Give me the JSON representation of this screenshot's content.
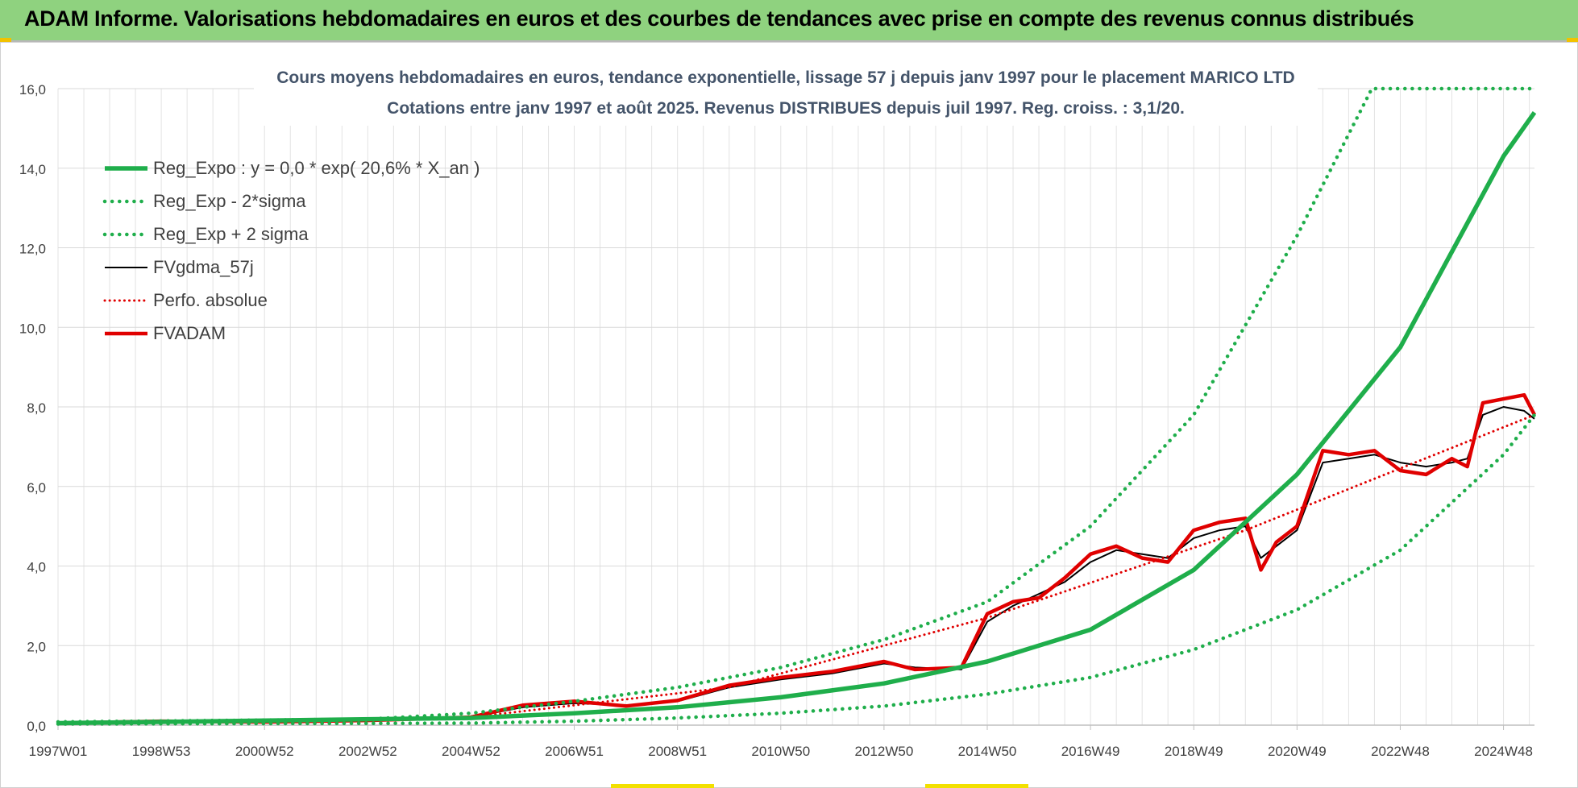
{
  "banner": {
    "title": "ADAM Informe. Valorisations hebdomadaires en euros et des courbes de tendances avec prise en compte des revenus connus distribués",
    "background_color": "#8fd27f"
  },
  "chart_data": {
    "type": "line",
    "title": "Cours moyens hebdomadaires en euros, tendance exponentielle, lissage 57 j depuis janv 1997  pour le placement MARICO LTD",
    "subtitle": "Cotations entre janv 1997 et août 2025.  Revenus DISTRIBUES depuis juil 1997.  Reg. croiss. : 3,1/20.",
    "xlabel": "",
    "ylabel": "",
    "xlim": [
      1997.0,
      2025.6
    ],
    "ylim": [
      0,
      16
    ],
    "y_ticks": [
      "0,0",
      "2,0",
      "4,0",
      "6,0",
      "8,0",
      "10,0",
      "12,0",
      "14,0",
      "16,0"
    ],
    "x_tick_labels": [
      {
        "label": "1997W01",
        "x": 1997.0
      },
      {
        "label": "1998W53",
        "x": 1999.0
      },
      {
        "label": "2000W52",
        "x": 2001.0
      },
      {
        "label": "2002W52",
        "x": 2003.0
      },
      {
        "label": "2004W52",
        "x": 2005.0
      },
      {
        "label": "2006W51",
        "x": 2007.0
      },
      {
        "label": "2008W51",
        "x": 2009.0
      },
      {
        "label": "2010W50",
        "x": 2011.0
      },
      {
        "label": "2012W50",
        "x": 2013.0
      },
      {
        "label": "2014W50",
        "x": 2015.0
      },
      {
        "label": "2016W49",
        "x": 2017.0
      },
      {
        "label": "2018W49",
        "x": 2019.0
      },
      {
        "label": "2020W49",
        "x": 2021.0
      },
      {
        "label": "2022W48",
        "x": 2023.0
      },
      {
        "label": "2024W48",
        "x": 2025.0
      }
    ],
    "grid": true,
    "legend_position": "top-left",
    "series": [
      {
        "name": "Reg_Expo : y = 0,0 * exp( 20,6% *  X_an )",
        "color": "#1fae4b",
        "style": "solid",
        "x": [
          1997.0,
          2005.0,
          2007.0,
          2009.0,
          2011.0,
          2013.0,
          2015.0,
          2017.0,
          2019.0,
          2021.0,
          2023.0,
          2025.0,
          2025.6
        ],
        "y": [
          0.05,
          0.18,
          0.3,
          0.45,
          0.7,
          1.05,
          1.6,
          2.4,
          3.9,
          6.3,
          9.5,
          14.3,
          15.4
        ]
      },
      {
        "name": "Reg_Exp - 2*sigma",
        "color": "#1fae4b",
        "style": "dotted",
        "x": [
          1997.0,
          2005.0,
          2007.0,
          2009.0,
          2011.0,
          2013.0,
          2015.0,
          2017.0,
          2019.0,
          2021.0,
          2023.0,
          2025.0,
          2025.6
        ],
        "y": [
          0.03,
          0.05,
          0.1,
          0.18,
          0.3,
          0.48,
          0.78,
          1.2,
          1.9,
          2.9,
          4.4,
          6.8,
          7.8
        ]
      },
      {
        "name": "Reg_Exp + 2 sigma",
        "color": "#1fae4b",
        "style": "dotted",
        "x": [
          1997.0,
          2003.0,
          2005.0,
          2007.0,
          2009.0,
          2011.0,
          2013.0,
          2015.0,
          2017.0,
          2019.0,
          2021.0,
          2022.45,
          2023.0,
          2025.0,
          2025.6
        ],
        "y": [
          0.08,
          0.15,
          0.3,
          0.6,
          0.95,
          1.45,
          2.15,
          3.1,
          5.0,
          7.8,
          12.3,
          16.0,
          16.0,
          16.0,
          16.0
        ]
      },
      {
        "name": "FVgdma_57j",
        "color": "#000000",
        "style": "solid",
        "x": [
          1997.0,
          1999.0,
          2001.0,
          2003.0,
          2005.0,
          2006.0,
          2007.0,
          2008.0,
          2009.0,
          2010.0,
          2011.0,
          2012.0,
          2013.0,
          2013.6,
          2014.5,
          2015.0,
          2015.5,
          2016.0,
          2016.5,
          2017.0,
          2017.5,
          2018.0,
          2018.5,
          2019.0,
          2019.5,
          2020.0,
          2020.3,
          2020.6,
          2021.0,
          2021.5,
          2022.0,
          2022.5,
          2023.0,
          2023.5,
          2024.0,
          2024.3,
          2024.6,
          2025.0,
          2025.4,
          2025.6
        ],
        "y": [
          0.05,
          0.1,
          0.08,
          0.12,
          0.2,
          0.45,
          0.55,
          0.5,
          0.6,
          0.95,
          1.15,
          1.3,
          1.55,
          1.45,
          1.4,
          2.6,
          3.0,
          3.3,
          3.6,
          4.1,
          4.4,
          4.3,
          4.2,
          4.7,
          4.9,
          5.0,
          4.2,
          4.5,
          4.9,
          6.6,
          6.7,
          6.8,
          6.6,
          6.5,
          6.6,
          6.7,
          7.8,
          8.0,
          7.9,
          7.7
        ]
      },
      {
        "name": "Perfo. absolue",
        "color": "#e00000",
        "style": "dotted",
        "x": [
          1997.0,
          2005.0,
          2010.0,
          2015.0,
          2020.0,
          2025.6
        ],
        "y": [
          0.05,
          0.2,
          0.95,
          2.7,
          4.9,
          7.8
        ]
      },
      {
        "name": "FVADAM",
        "color": "#e00000",
        "style": "solid",
        "x": [
          1997.0,
          1999.0,
          2001.0,
          2003.0,
          2005.0,
          2006.0,
          2007.0,
          2008.0,
          2009.0,
          2010.0,
          2011.0,
          2012.0,
          2013.0,
          2013.6,
          2014.5,
          2015.0,
          2015.5,
          2016.0,
          2016.5,
          2017.0,
          2017.5,
          2018.0,
          2018.5,
          2019.0,
          2019.5,
          2020.0,
          2020.3,
          2020.6,
          2021.0,
          2021.5,
          2022.0,
          2022.5,
          2023.0,
          2023.5,
          2024.0,
          2024.3,
          2024.6,
          2025.0,
          2025.4,
          2025.6
        ],
        "y": [
          0.05,
          0.1,
          0.08,
          0.12,
          0.2,
          0.5,
          0.6,
          0.48,
          0.62,
          1.0,
          1.2,
          1.35,
          1.6,
          1.4,
          1.45,
          2.8,
          3.1,
          3.2,
          3.7,
          4.3,
          4.5,
          4.2,
          4.1,
          4.9,
          5.1,
          5.2,
          3.9,
          4.6,
          5.0,
          6.9,
          6.8,
          6.9,
          6.4,
          6.3,
          6.7,
          6.5,
          8.1,
          8.2,
          8.3,
          7.8
        ]
      }
    ]
  }
}
